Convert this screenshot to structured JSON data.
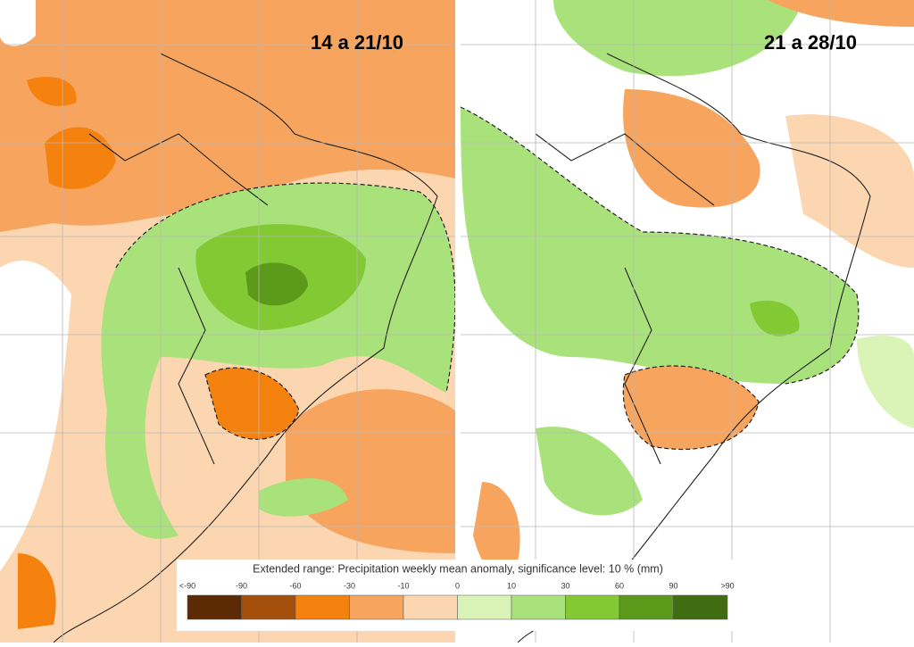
{
  "panels": [
    {
      "title": "14 a 21/10"
    },
    {
      "title": "21 a 28/10"
    }
  ],
  "legend": {
    "title": "Extended range: Precipitation weekly mean anomaly, significance level: 10 % (mm)",
    "labels": [
      "<-90",
      "-90",
      "-60",
      "-30",
      "-10",
      "0",
      "10",
      "30",
      "60",
      "90",
      ">90"
    ],
    "colors": [
      "#5c2a04",
      "#a4500c",
      "#f5820f",
      "#f7a55e",
      "#fcd6b0",
      "#daf3b6",
      "#a9e27a",
      "#82c934",
      "#5c9a1c",
      "#426c12"
    ]
  }
}
